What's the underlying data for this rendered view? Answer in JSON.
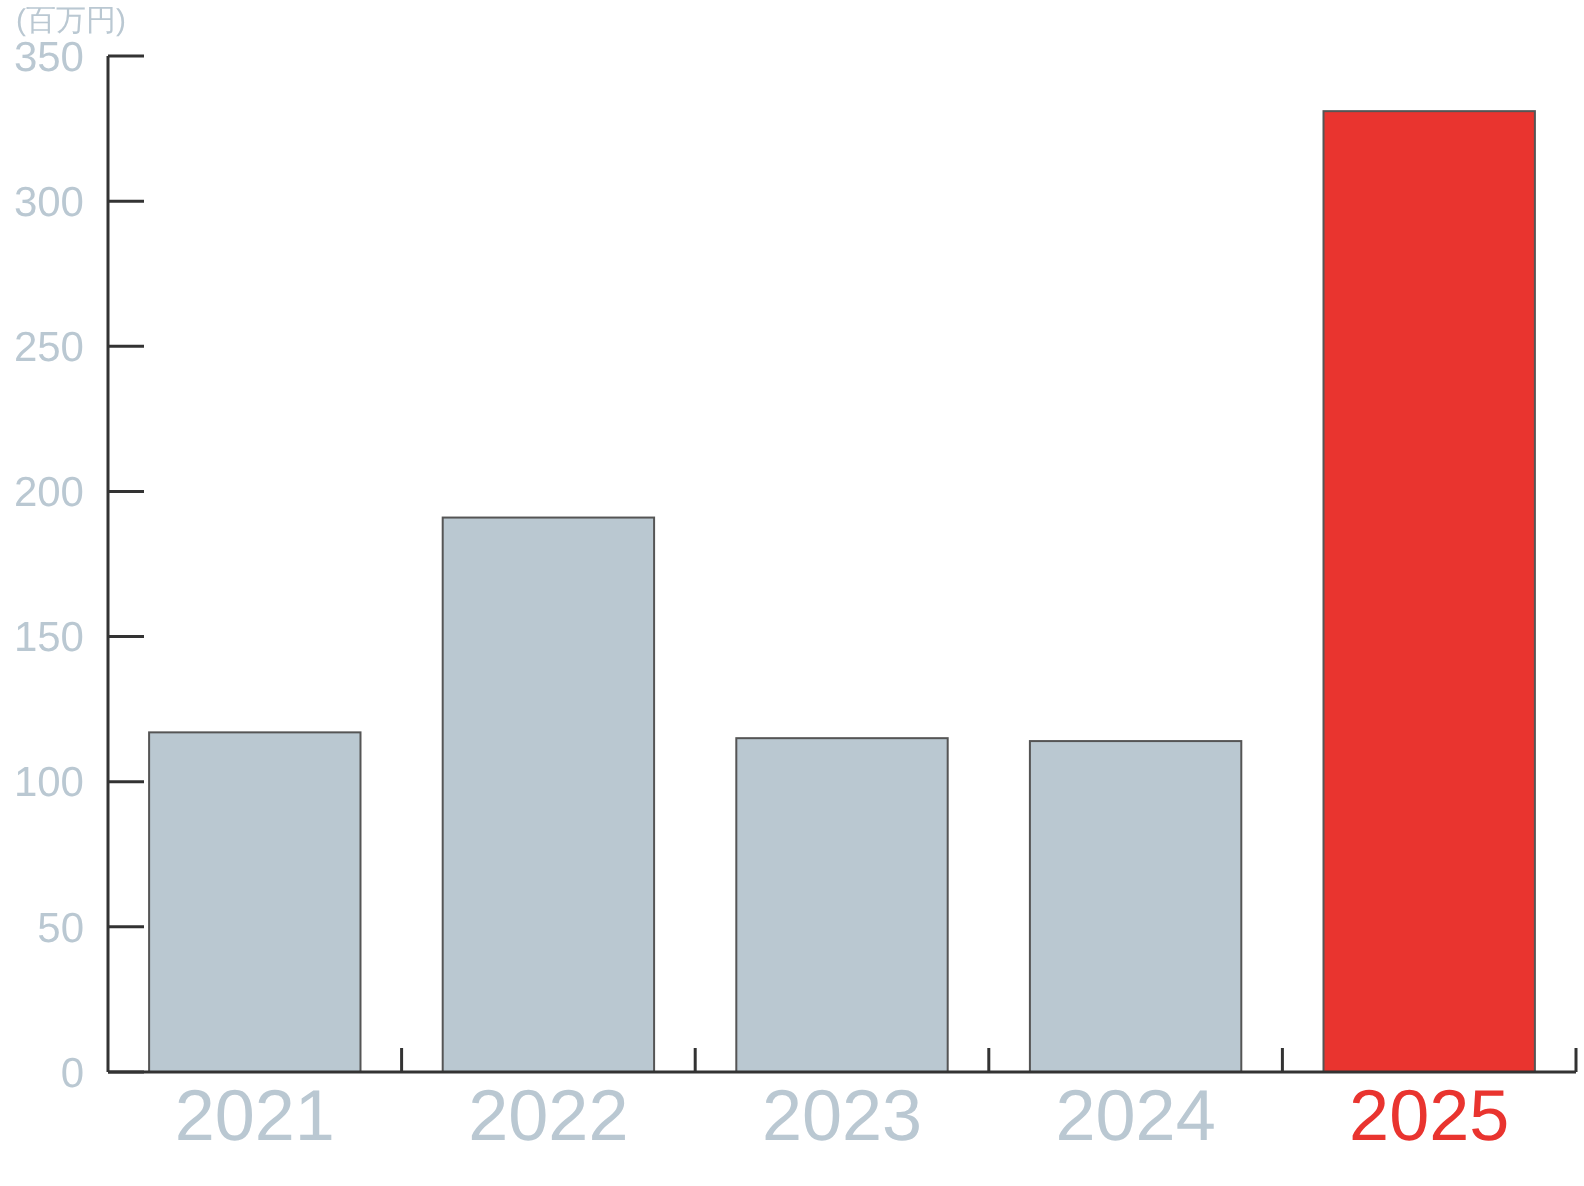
{
  "chart_data": {
    "type": "bar",
    "ylabel": "(百万円)",
    "categories": [
      "2021",
      "2022",
      "2023",
      "2024",
      "2025"
    ],
    "values": [
      117,
      191,
      115,
      114,
      331
    ],
    "colors": [
      "#bac8d1",
      "#bac8d1",
      "#bac8d1",
      "#bac8d1",
      "#e9342f"
    ],
    "ylim": [
      0,
      350
    ],
    "yticks": [
      0,
      50,
      100,
      150,
      200,
      250,
      300,
      350
    ]
  }
}
